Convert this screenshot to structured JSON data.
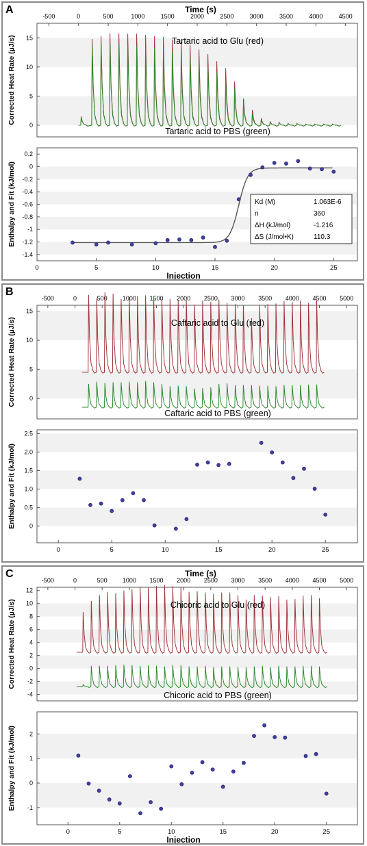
{
  "figure": {
    "panels": [
      {
        "letter": "A",
        "time_axis": {
          "label": "Time (s)",
          "ticks": [
            -500,
            0,
            500,
            1000,
            1500,
            2000,
            2500,
            3000,
            3500,
            4000,
            4500
          ],
          "range": [
            -700,
            4700
          ]
        },
        "heat": {
          "ylabel": "Corrected Heat Rate (µJ/s)",
          "yticks": [
            0,
            5,
            10,
            15
          ],
          "yrange": [
            -2,
            17.5
          ],
          "red_label": "Tartaric acid to Glu (red)",
          "green_label": "Tartaric acid to PBS (green)",
          "red_baseline": 0,
          "green_baseline": 0,
          "red_color": "#a0353a",
          "green_color": "#2f8a2f"
        },
        "enthalpy": {
          "ylabel": "Enthalpy and Fit (kJ/mol)",
          "yticks": [
            0.2,
            0,
            -0.2,
            -0.4,
            -0.6,
            -0.8,
            -1,
            -1.2,
            -1.4
          ],
          "ytick_labels": [
            "0.2",
            "0",
            "-0.2",
            "-0.4",
            "-0.6",
            "-0.8",
            "-1",
            "-1.2",
            "-1.4"
          ],
          "yrange": [
            -1.5,
            0.3
          ],
          "xlabel": "Injection",
          "xticks": [
            0,
            5,
            10,
            15,
            20,
            25
          ],
          "xrange": [
            0,
            27
          ],
          "has_fit": true,
          "fit_table": [
            {
              "name": "Kd (M)",
              "value": "1.063E-6"
            },
            {
              "name": "n",
              "value": "360"
            },
            {
              "name": "ΔH (kJ/mol)",
              "value": "-1.216"
            },
            {
              "name": "ΔS (J/mol•K)",
              "value": "110.3"
            }
          ]
        }
      },
      {
        "letter": "B",
        "time_axis": {
          "label": "",
          "ticks": [
            -500,
            0,
            500,
            1000,
            1500,
            2000,
            2500,
            3000,
            3500,
            4000,
            4500,
            5000
          ],
          "range": [
            -700,
            5200
          ]
        },
        "heat": {
          "ylabel": "Corrected Heat Rate (µJ/s)",
          "yticks": [
            0,
            5,
            10,
            15
          ],
          "yrange": [
            -3.5,
            16
          ],
          "red_label": "Caftaric acid to Glu (red)",
          "green_label": "Caftaric acid to PBS (green)",
          "red_baseline": 4.5,
          "green_baseline": -1.5,
          "red_color": "#a0353a",
          "green_color": "#2f8a2f"
        },
        "enthalpy": {
          "ylabel": "Enthalpy and Fit (kJ/mol)",
          "yticks": [
            0,
            0.5,
            1,
            1.5,
            2,
            2.5
          ],
          "ytick_labels": [
            "0",
            "0.5",
            "1.0",
            "1.5",
            "2.0",
            "2.5"
          ],
          "yrange": [
            -0.45,
            2.6
          ],
          "xlabel": "",
          "xticks": [
            0,
            5,
            10,
            15,
            20,
            25
          ],
          "xrange": [
            -2,
            28
          ],
          "has_fit": false,
          "fit_table": []
        }
      },
      {
        "letter": "C",
        "time_axis": {
          "label": "Time (s)",
          "ticks": [
            -500,
            0,
            500,
            1000,
            1500,
            2000,
            2500,
            3000,
            3500,
            4000,
            4500,
            5000
          ],
          "range": [
            -700,
            5200
          ]
        },
        "heat": {
          "ylabel": "Corrected Heat Rate (µJ/s)",
          "yticks": [
            -4,
            -2,
            0,
            2,
            4,
            6,
            8,
            10,
            12
          ],
          "yrange": [
            -5,
            12.5
          ],
          "red_label": "Chicoric acid to Glu (red)",
          "green_label": "Chicoric acid to PBS (green)",
          "red_baseline": 2.5,
          "green_baseline": -2.8,
          "red_color": "#a0353a",
          "green_color": "#2f8a2f"
        },
        "enthalpy": {
          "ylabel": "Enthalpy and Fit (kJ/mol)",
          "yticks": [
            -1,
            0,
            1,
            2
          ],
          "ytick_labels": [
            "-1",
            "0",
            "1",
            "2"
          ],
          "yrange": [
            -1.7,
            2.9
          ],
          "xlabel": "Injection",
          "xticks": [
            0,
            5,
            10,
            15,
            20,
            25
          ],
          "xrange": [
            -3,
            28
          ],
          "has_fit": false,
          "fit_table": []
        }
      }
    ]
  },
  "chart_data": [
    {
      "type": "line",
      "title": "",
      "xlabel": "Time (s)",
      "ylabel": "Corrected Heat Rate (µJ/s)",
      "series": [
        {
          "name": "Tartaric acid to Glu (red)",
          "injection_times": [
            45,
            230,
            380,
            530,
            680,
            830,
            980,
            1130,
            1280,
            1430,
            1580,
            1730,
            1880,
            2030,
            2180,
            2330,
            2480,
            2630,
            2780,
            2930,
            3080,
            3230,
            3380,
            3530,
            3680,
            3830,
            3980,
            4130,
            4280
          ],
          "peaks": [
            1.5,
            14.8,
            15.3,
            15.8,
            15.8,
            15.7,
            15.7,
            15.5,
            15.3,
            15.2,
            14.7,
            14.3,
            13.8,
            13.0,
            12.2,
            11.0,
            9.8,
            7.5,
            4.6,
            2.6,
            1.2,
            0.6,
            0.5,
            0.3,
            0.3,
            0.2,
            0.2,
            0.2,
            0.2
          ]
        },
        {
          "name": "Tartaric acid to PBS (green)",
          "injection_times": [
            45,
            230,
            380,
            530,
            680,
            830,
            980,
            1130,
            1280,
            1430,
            1580,
            1730,
            1880,
            2030,
            2180,
            2330,
            2480,
            2630,
            2780,
            2930,
            3080,
            3230,
            3380,
            3530,
            3680,
            3830,
            3980,
            4130,
            4280
          ],
          "peaks": [
            1.4,
            13.8,
            14.2,
            14.0,
            13.8,
            13.7,
            13.6,
            13.5,
            13.2,
            13.0,
            12.6,
            12.2,
            11.6,
            10.9,
            10.0,
            9.0,
            7.7,
            6.2,
            3.9,
            1.9,
            0.9,
            0.5,
            0.5,
            0.3,
            0.3,
            0.2,
            0.2,
            0.2,
            0.2
          ]
        }
      ]
    },
    {
      "type": "scatter",
      "title": "",
      "xlabel": "Injection",
      "ylabel": "Enthalpy and Fit (kJ/mol)",
      "series": [
        {
          "name": "",
          "x": [
            3,
            5,
            6,
            8,
            10,
            11,
            12,
            13,
            14,
            15,
            16,
            17,
            18,
            19,
            20,
            21,
            22,
            23,
            24,
            25
          ],
          "y": [
            -1.21,
            -1.24,
            -1.21,
            -1.24,
            -1.22,
            -1.17,
            -1.16,
            -1.17,
            -1.13,
            -1.28,
            -1.18,
            -0.52,
            -0.13,
            -0.01,
            0.06,
            0.05,
            0.09,
            -0.03,
            -0.04,
            -0.08
          ]
        },
        {
          "name": "",
          "kind": "fit",
          "x": [
            3,
            15,
            16,
            16.5,
            17,
            17.5,
            18,
            19,
            25
          ],
          "y": [
            -1.22,
            -1.21,
            -1.15,
            -0.9,
            -0.55,
            -0.25,
            -0.08,
            -0.02,
            -0.02
          ]
        }
      ]
    },
    {
      "type": "line",
      "title": "",
      "xlabel": "",
      "ylabel": "Corrected Heat Rate (µJ/s)",
      "series": [
        {
          "name": "Caftaric acid to Glu (red)",
          "injection_times": [
            250,
            400,
            550,
            700,
            850,
            1000,
            1150,
            1300,
            1450,
            1600,
            1750,
            1900,
            2050,
            2200,
            2350,
            2500,
            2650,
            2800,
            2950,
            3100,
            3250,
            3400,
            3550,
            3700,
            3850,
            4000,
            4150,
            4300,
            4450
          ],
          "peaks": [
            13.3,
            12.7,
            13.7,
            13.5,
            12.6,
            12.9,
            13.1,
            13.2,
            12.9,
            12.6,
            12.6,
            12.4,
            12.4,
            11.6,
            12.3,
            12.1,
            12.5,
            11.9,
            11.7,
            11.5,
            9.3,
            11.6,
            11.7,
            11.8,
            12.2,
            12.1,
            12.3,
            11.9,
            12.3
          ]
        },
        {
          "name": "Caftaric acid to PBS (green)",
          "injection_times": [
            250,
            400,
            550,
            700,
            850,
            1000,
            1150,
            1300,
            1450,
            1600,
            1750,
            1900,
            2050,
            2200,
            2350,
            2500,
            2650,
            2800,
            2950,
            3100,
            3250,
            3400,
            3550,
            3700,
            3850,
            4000,
            4150,
            4300,
            4450
          ],
          "peaks": [
            4.0,
            4.4,
            4.2,
            4.3,
            4.3,
            4.4,
            4.3,
            4.5,
            4.3,
            4.0,
            3.6,
            3.7,
            3.6,
            3.2,
            3.3,
            3.4,
            4.0,
            4.1,
            3.8,
            3.8,
            3.8,
            3.7,
            3.7,
            3.6,
            3.8,
            3.8,
            3.8,
            3.9,
            3.9
          ]
        }
      ]
    },
    {
      "type": "scatter",
      "title": "",
      "xlabel": "",
      "ylabel": "Enthalpy and Fit (kJ/mol)",
      "series": [
        {
          "name": "",
          "x": [
            2,
            3,
            4,
            5,
            6,
            7,
            8,
            9,
            11,
            12,
            13,
            14,
            15,
            16,
            19,
            20,
            21,
            22,
            23,
            24,
            25
          ],
          "y": [
            1.28,
            0.57,
            0.61,
            0.41,
            0.7,
            0.89,
            0.7,
            0.02,
            -0.07,
            0.19,
            1.66,
            1.72,
            1.65,
            1.68,
            2.25,
            1.99,
            1.72,
            1.3,
            1.55,
            1.01,
            0.31
          ]
        }
      ]
    },
    {
      "type": "line",
      "title": "",
      "xlabel": "Time (s)",
      "ylabel": "Corrected Heat Rate (µJ/s)",
      "series": [
        {
          "name": "Chicoric acid to Glu (red)",
          "injection_times": [
            150,
            300,
            450,
            600,
            750,
            900,
            1050,
            1200,
            1350,
            1500,
            1650,
            1800,
            1950,
            2100,
            2250,
            2400,
            2550,
            2700,
            2850,
            3000,
            3150,
            3300,
            3450,
            3600,
            3750,
            3900,
            4050,
            4200,
            4350,
            4500
          ],
          "peaks": [
            6.2,
            7.9,
            8.8,
            9.3,
            9.1,
            9.5,
            9.7,
            10.0,
            10.0,
            10.2,
            10.3,
            10.2,
            10.0,
            9.3,
            9.4,
            9.2,
            9.0,
            9.2,
            9.2,
            8.8,
            8.1,
            8.8,
            8.7,
            8.5,
            8.6,
            8.1,
            8.2,
            8.7,
            8.8,
            8.3
          ]
        },
        {
          "name": "Chicoric acid to PBS (green)",
          "injection_times": [
            150,
            300,
            450,
            600,
            750,
            900,
            1050,
            1200,
            1350,
            1500,
            1650,
            1800,
            1950,
            2100,
            2250,
            2400,
            2550,
            2700,
            2850,
            3000,
            3150,
            3300,
            3450,
            3600,
            3750,
            3900,
            4050,
            4200,
            4350,
            4500
          ],
          "peaks": [
            0.3,
            3.2,
            3.2,
            3.2,
            3.3,
            3.4,
            3.3,
            3.2,
            3.3,
            3.2,
            3.1,
            3.3,
            3.3,
            3.1,
            3.1,
            3.2,
            3.0,
            3.1,
            3.1,
            3.0,
            3.0,
            3.1,
            3.2,
            3.0,
            3.2,
            3.1,
            3.1,
            3.2,
            3.2,
            3.1
          ]
        }
      ]
    },
    {
      "type": "scatter",
      "title": "",
      "xlabel": "Injection",
      "ylabel": "Enthalpy and Fit (kJ/mol)",
      "series": [
        {
          "name": "",
          "x": [
            1,
            2,
            3,
            4,
            5,
            6,
            7,
            8,
            9,
            10,
            11,
            12,
            13,
            14,
            15,
            16,
            17,
            18,
            19,
            20,
            21,
            23,
            24,
            25
          ],
          "y": [
            1.12,
            -0.02,
            -0.31,
            -0.67,
            -0.83,
            0.28,
            -1.23,
            -0.78,
            -1.05,
            0.68,
            -0.05,
            0.42,
            0.85,
            0.55,
            -0.15,
            0.47,
            0.82,
            1.92,
            2.35,
            1.87,
            1.85,
            1.1,
            1.18,
            -0.43
          ]
        }
      ]
    }
  ]
}
